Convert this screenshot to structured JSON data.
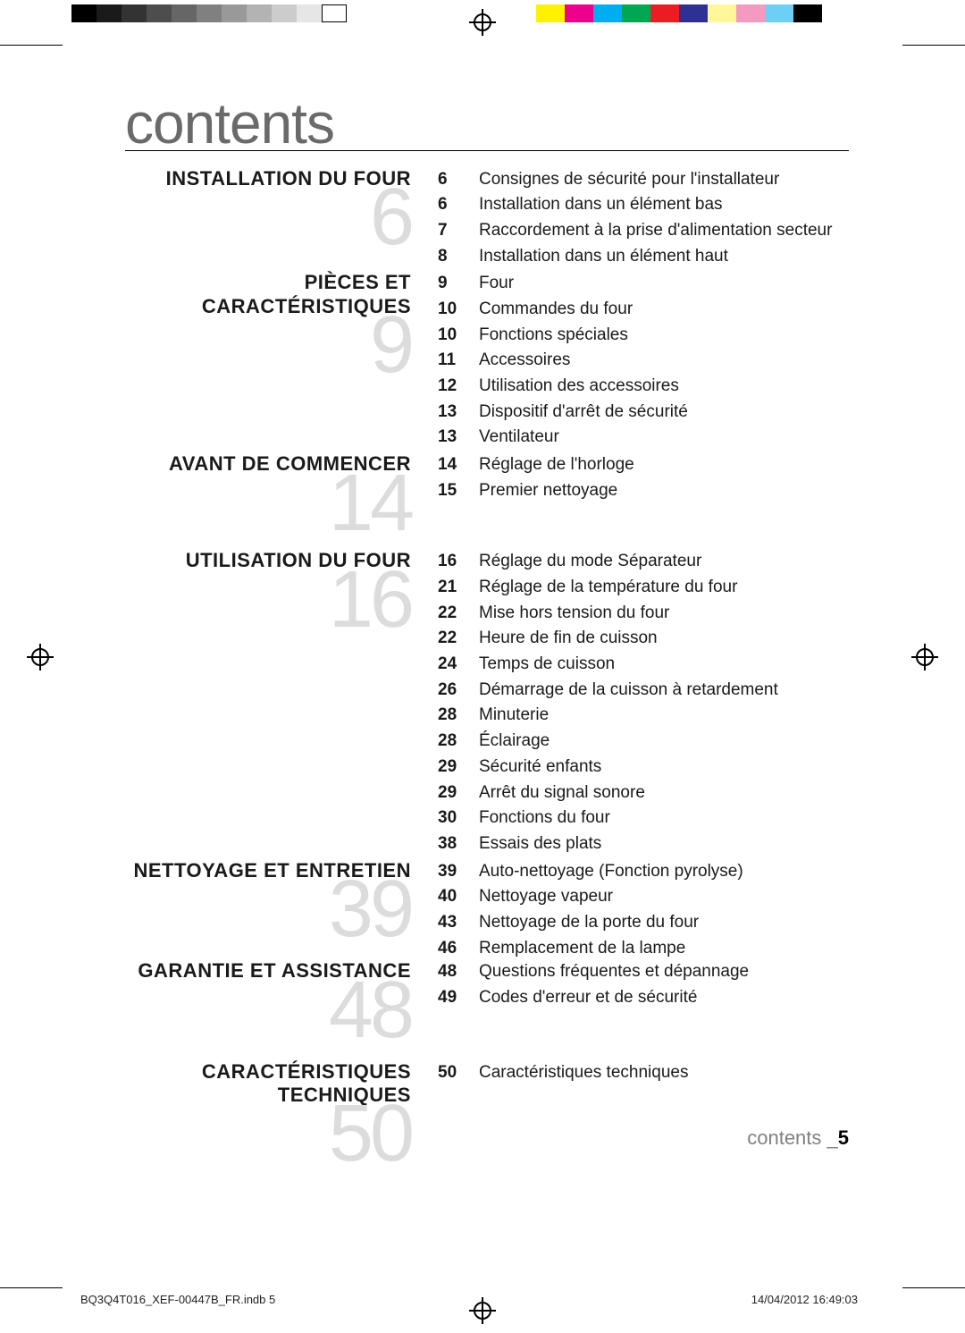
{
  "title": "contents",
  "title_color": "#6a6a6a",
  "bignum_color": "#dcdcdc",
  "text_color": "#1a1a1a",
  "footer": {
    "label": "contents _",
    "num": "5",
    "label_color": "#808080"
  },
  "pdf": {
    "file": "BQ3Q4T016_XEF-00447B_FR.indb   5",
    "stamp": "14/04/2012   16:49:03"
  },
  "gray_swatches": [
    "#000000",
    "#1a1a1a",
    "#333333",
    "#4d4d4d",
    "#666666",
    "#808080",
    "#999999",
    "#b3b3b3",
    "#cccccc",
    "#e6e6e6",
    "#ffffff"
  ],
  "color_swatches": [
    "#fff200",
    "#ec008c",
    "#00aeef",
    "#00a651",
    "#ed1c24",
    "#2e3192",
    "#fff799",
    "#f49ac1",
    "#6dcff6",
    "#000000"
  ],
  "sections": [
    {
      "title": "INSTALLATION DU FOUR",
      "num": "6",
      "gap_before": 0,
      "entries": [
        {
          "pg": "6",
          "lbl": "Consignes de sécurité pour l'installateur"
        },
        {
          "pg": "6",
          "lbl": "Installation dans un élément bas"
        },
        {
          "pg": "7",
          "lbl": "Raccordement à la prise d'alimentation secteur"
        },
        {
          "pg": "8",
          "lbl": "Installation dans un élément haut"
        }
      ]
    },
    {
      "title": "PIÈCES ET CARACTÉRISTIQUES",
      "num": "9",
      "gap_before": 4,
      "entries": [
        {
          "pg": "9",
          "lbl": "Four"
        },
        {
          "pg": "10",
          "lbl": "Commandes du four"
        },
        {
          "pg": "10",
          "lbl": "Fonctions spéciales"
        },
        {
          "pg": "11",
          "lbl": "Accessoires"
        },
        {
          "pg": "12",
          "lbl": "Utilisation des accessoires"
        },
        {
          "pg": "13",
          "lbl": "Dispositif d'arrêt de sécurité"
        },
        {
          "pg": "13",
          "lbl": "Ventilateur"
        }
      ]
    },
    {
      "title": "AVANT DE COMMENCER",
      "num": "14",
      "gap_before": 4,
      "entries": [
        {
          "pg": "14",
          "lbl": "Réglage de l'horloge"
        },
        {
          "pg": "15",
          "lbl": "Premier nettoyage"
        }
      ]
    },
    {
      "title": "UTILISATION DU FOUR",
      "num": "16",
      "gap_before": 14,
      "entries": [
        {
          "pg": "16",
          "lbl": "Réglage du mode Séparateur"
        },
        {
          "pg": "21",
          "lbl": "Réglage de la température du four"
        },
        {
          "pg": "22",
          "lbl": "Mise hors tension du four"
        },
        {
          "pg": "22",
          "lbl": "Heure de fin de cuisson"
        },
        {
          "pg": "24",
          "lbl": "Temps de cuisson"
        },
        {
          "pg": "26",
          "lbl": "Démarrage de la cuisson à retardement"
        },
        {
          "pg": "28",
          "lbl": "Minuterie"
        },
        {
          "pg": "28",
          "lbl": "Éclairage"
        },
        {
          "pg": "29",
          "lbl": "Sécurité enfants"
        },
        {
          "pg": "29",
          "lbl": "Arrêt du signal sonore"
        },
        {
          "pg": "30",
          "lbl": "Fonctions du four"
        },
        {
          "pg": "38",
          "lbl": "Essais des plats"
        }
      ]
    },
    {
      "title": "NETTOYAGE ET ENTRETIEN",
      "num": "39",
      "gap_before": 4,
      "entries": [
        {
          "pg": "39",
          "lbl": "Auto-nettoyage (Fonction pyrolyse)"
        },
        {
          "pg": "40",
          "lbl": "Nettoyage vapeur"
        },
        {
          "pg": "43",
          "lbl": "Nettoyage de la porte du four"
        },
        {
          "pg": "46",
          "lbl": "Remplacement de la lampe"
        }
      ]
    },
    {
      "title": "GARANTIE ET ASSISTANCE",
      "num": "48",
      "gap_before": 0,
      "entries": [
        {
          "pg": "48",
          "lbl": "Questions fréquentes et dépannage"
        },
        {
          "pg": "49",
          "lbl": "Codes d'erreur et de sécurité"
        }
      ]
    },
    {
      "title": "CARACTÉRISTIQUES TECHNIQUES",
      "num": "50",
      "gap_before": 18,
      "entries": [
        {
          "pg": "50",
          "lbl": "Caractéristiques techniques"
        }
      ]
    }
  ]
}
